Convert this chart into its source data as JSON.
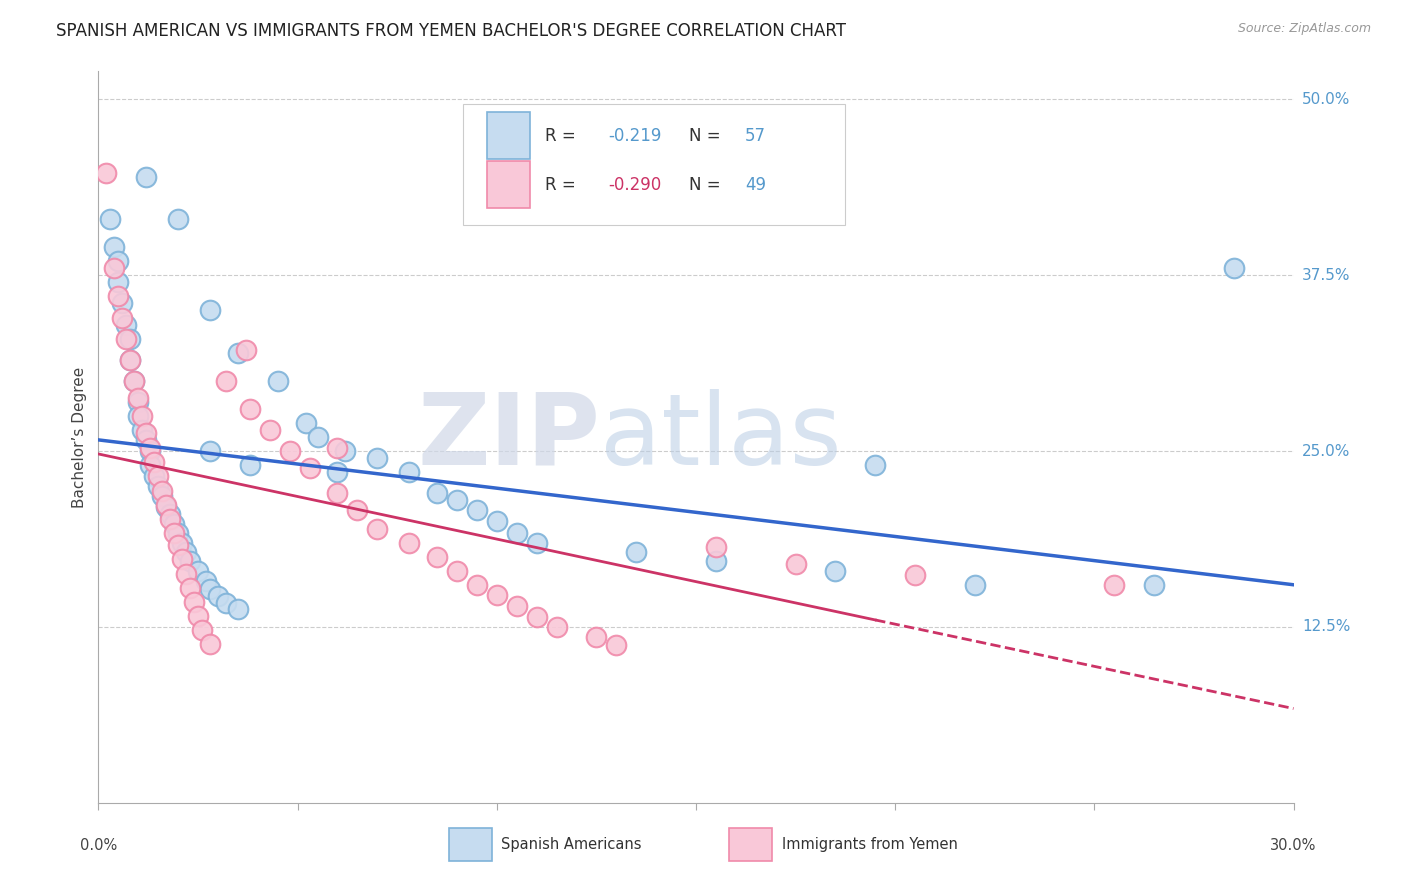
{
  "title": "SPANISH AMERICAN VS IMMIGRANTS FROM YEMEN BACHELOR'S DEGREE CORRELATION CHART",
  "source": "Source: ZipAtlas.com",
  "ylabel": "Bachelor’s Degree",
  "xlim": [
    0.0,
    0.3
  ],
  "ylim": [
    0.0,
    0.52
  ],
  "watermark_zip": "ZIP",
  "watermark_atlas": "atlas",
  "legend_label1": "Spanish Americans",
  "legend_label2": "Immigrants from Yemen",
  "blue_r": "-0.219",
  "blue_n": "57",
  "pink_r": "-0.290",
  "pink_n": "49",
  "blue_scatter": [
    [
      0.003,
      0.415
    ],
    [
      0.004,
      0.395
    ],
    [
      0.005,
      0.385
    ],
    [
      0.005,
      0.37
    ],
    [
      0.006,
      0.355
    ],
    [
      0.007,
      0.34
    ],
    [
      0.008,
      0.33
    ],
    [
      0.008,
      0.315
    ],
    [
      0.009,
      0.3
    ],
    [
      0.01,
      0.285
    ],
    [
      0.01,
      0.275
    ],
    [
      0.011,
      0.265
    ],
    [
      0.012,
      0.258
    ],
    [
      0.013,
      0.25
    ],
    [
      0.013,
      0.24
    ],
    [
      0.014,
      0.232
    ],
    [
      0.015,
      0.225
    ],
    [
      0.016,
      0.218
    ],
    [
      0.017,
      0.21
    ],
    [
      0.018,
      0.205
    ],
    [
      0.019,
      0.198
    ],
    [
      0.02,
      0.192
    ],
    [
      0.021,
      0.185
    ],
    [
      0.022,
      0.178
    ],
    [
      0.023,
      0.172
    ],
    [
      0.025,
      0.165
    ],
    [
      0.027,
      0.158
    ],
    [
      0.028,
      0.152
    ],
    [
      0.03,
      0.147
    ],
    [
      0.032,
      0.142
    ],
    [
      0.035,
      0.138
    ],
    [
      0.012,
      0.445
    ],
    [
      0.02,
      0.415
    ],
    [
      0.028,
      0.35
    ],
    [
      0.035,
      0.32
    ],
    [
      0.045,
      0.3
    ],
    [
      0.052,
      0.27
    ],
    [
      0.055,
      0.26
    ],
    [
      0.062,
      0.25
    ],
    [
      0.07,
      0.245
    ],
    [
      0.028,
      0.25
    ],
    [
      0.038,
      0.24
    ],
    [
      0.06,
      0.235
    ],
    [
      0.078,
      0.235
    ],
    [
      0.085,
      0.22
    ],
    [
      0.09,
      0.215
    ],
    [
      0.095,
      0.208
    ],
    [
      0.1,
      0.2
    ],
    [
      0.105,
      0.192
    ],
    [
      0.11,
      0.185
    ],
    [
      0.135,
      0.178
    ],
    [
      0.155,
      0.172
    ],
    [
      0.185,
      0.165
    ],
    [
      0.195,
      0.24
    ],
    [
      0.22,
      0.155
    ],
    [
      0.265,
      0.155
    ],
    [
      0.285,
      0.38
    ]
  ],
  "pink_scatter": [
    [
      0.002,
      0.448
    ],
    [
      0.004,
      0.38
    ],
    [
      0.005,
      0.36
    ],
    [
      0.006,
      0.345
    ],
    [
      0.007,
      0.33
    ],
    [
      0.008,
      0.315
    ],
    [
      0.009,
      0.3
    ],
    [
      0.01,
      0.288
    ],
    [
      0.011,
      0.275
    ],
    [
      0.012,
      0.263
    ],
    [
      0.013,
      0.252
    ],
    [
      0.014,
      0.242
    ],
    [
      0.015,
      0.232
    ],
    [
      0.016,
      0.222
    ],
    [
      0.017,
      0.212
    ],
    [
      0.018,
      0.202
    ],
    [
      0.019,
      0.192
    ],
    [
      0.02,
      0.183
    ],
    [
      0.021,
      0.173
    ],
    [
      0.022,
      0.163
    ],
    [
      0.023,
      0.153
    ],
    [
      0.024,
      0.143
    ],
    [
      0.025,
      0.133
    ],
    [
      0.026,
      0.123
    ],
    [
      0.028,
      0.113
    ],
    [
      0.032,
      0.3
    ],
    [
      0.037,
      0.322
    ],
    [
      0.038,
      0.28
    ],
    [
      0.043,
      0.265
    ],
    [
      0.048,
      0.25
    ],
    [
      0.053,
      0.238
    ],
    [
      0.06,
      0.22
    ],
    [
      0.065,
      0.208
    ],
    [
      0.07,
      0.195
    ],
    [
      0.078,
      0.185
    ],
    [
      0.085,
      0.175
    ],
    [
      0.09,
      0.165
    ],
    [
      0.095,
      0.155
    ],
    [
      0.1,
      0.148
    ],
    [
      0.105,
      0.14
    ],
    [
      0.11,
      0.132
    ],
    [
      0.115,
      0.125
    ],
    [
      0.125,
      0.118
    ],
    [
      0.13,
      0.112
    ],
    [
      0.06,
      0.252
    ],
    [
      0.155,
      0.182
    ],
    [
      0.175,
      0.17
    ],
    [
      0.205,
      0.162
    ],
    [
      0.255,
      0.155
    ]
  ],
  "blue_line": {
    "x0": 0.0,
    "y0": 0.258,
    "x1": 0.3,
    "y1": 0.155
  },
  "pink_line_solid": {
    "x0": 0.0,
    "y0": 0.248,
    "x1": 0.195,
    "y1": 0.13
  },
  "pink_line_dashed": {
    "x0": 0.195,
    "y0": 0.13,
    "x1": 0.3,
    "y1": 0.067
  },
  "grid_color": "#cccccc",
  "background_color": "#ffffff",
  "blue_face": "#c6dcf0",
  "blue_edge": "#7fb3d9",
  "pink_face": "#f9c8d8",
  "pink_edge": "#f08aaa",
  "blue_line_color": "#3366cc",
  "pink_line_color": "#cc3366",
  "title_fontsize": 12,
  "source_fontsize": 9,
  "ytick_vals": [
    0.125,
    0.25,
    0.375,
    0.5
  ],
  "ytick_labels": [
    "12.5%",
    "25.0%",
    "37.5%",
    "50.0%"
  ]
}
